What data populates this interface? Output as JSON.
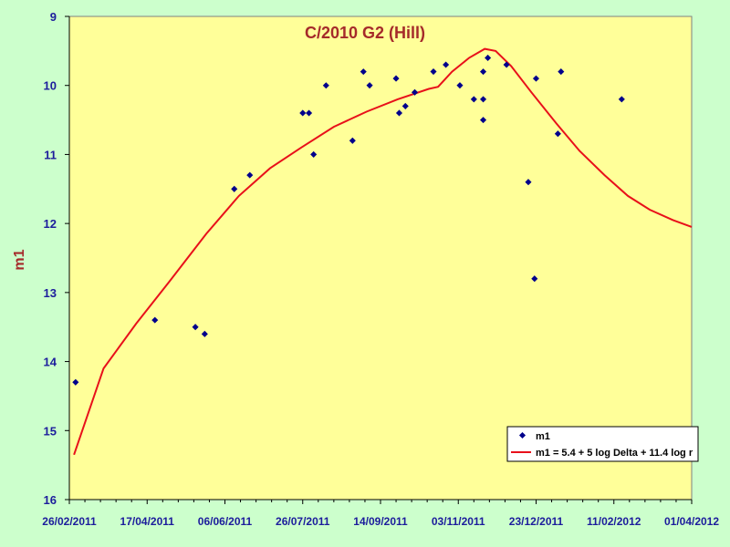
{
  "chart_data": {
    "type": "scatter",
    "title": "C/2010 G2 (Hill)",
    "ylabel": "m1",
    "xlabel": "",
    "y_inverted": true,
    "ylim": [
      9,
      16
    ],
    "yticks": [
      "9",
      "10",
      "11",
      "12",
      "13",
      "14",
      "15",
      "16"
    ],
    "xlim": [
      "2011-02-26",
      "2012-04-01"
    ],
    "xticks": [
      "26/02/2011",
      "17/04/2011",
      "06/06/2011",
      "26/07/2011",
      "14/09/2011",
      "03/11/2011",
      "23/12/2011",
      "11/02/2012",
      "01/04/2012"
    ],
    "grid": false,
    "legend_position": "bottom-right",
    "series": [
      {
        "name": "m1",
        "kind": "scatter",
        "color": "#00008b",
        "points": [
          [
            "2011-03-02",
            14.3
          ],
          [
            "2011-04-22",
            13.4
          ],
          [
            "2011-05-18",
            13.5
          ],
          [
            "2011-05-24",
            13.6
          ],
          [
            "2011-06-12",
            11.5
          ],
          [
            "2011-06-22",
            11.3
          ],
          [
            "2011-07-26",
            10.4
          ],
          [
            "2011-07-30",
            10.4
          ],
          [
            "2011-08-02",
            11.0
          ],
          [
            "2011-08-10",
            10.0
          ],
          [
            "2011-08-27",
            10.8
          ],
          [
            "2011-09-03",
            9.8
          ],
          [
            "2011-09-07",
            10.0
          ],
          [
            "2011-09-24",
            9.9
          ],
          [
            "2011-09-26",
            10.4
          ],
          [
            "2011-09-30",
            10.3
          ],
          [
            "2011-10-06",
            10.1
          ],
          [
            "2011-10-18",
            9.8
          ],
          [
            "2011-10-26",
            9.7
          ],
          [
            "2011-11-04",
            10.0
          ],
          [
            "2011-11-13",
            10.2
          ],
          [
            "2011-11-19",
            9.8
          ],
          [
            "2011-11-19",
            10.2
          ],
          [
            "2011-11-19",
            10.5
          ],
          [
            "2011-11-22",
            9.6
          ],
          [
            "2011-12-04",
            9.7
          ],
          [
            "2011-12-18",
            11.4
          ],
          [
            "2011-12-22",
            12.8
          ],
          [
            "2011-12-23",
            9.9
          ],
          [
            "2012-01-06",
            10.7
          ],
          [
            "2012-01-08",
            9.8
          ],
          [
            "2012-02-16",
            10.2
          ]
        ]
      },
      {
        "name": "m1 = 5.4 + 5 log Delta + 11.4 log r",
        "kind": "line",
        "color": "#e8101a",
        "points": [
          [
            "2011-03-01",
            15.35
          ],
          [
            "2011-03-20",
            14.1
          ],
          [
            "2011-04-10",
            13.45
          ],
          [
            "2011-05-01",
            12.85
          ],
          [
            "2011-05-25",
            12.15
          ],
          [
            "2011-06-15",
            11.6
          ],
          [
            "2011-07-05",
            11.2
          ],
          [
            "2011-07-25",
            10.9
          ],
          [
            "2011-08-15",
            10.6
          ],
          [
            "2011-09-05",
            10.38
          ],
          [
            "2011-09-25",
            10.2
          ],
          [
            "2011-10-15",
            10.05
          ],
          [
            "2011-10-21",
            10.02
          ],
          [
            "2011-10-30",
            9.8
          ],
          [
            "2011-11-10",
            9.6
          ],
          [
            "2011-11-20",
            9.47
          ],
          [
            "2011-11-27",
            9.5
          ],
          [
            "2011-12-07",
            9.72
          ],
          [
            "2011-12-20",
            10.1
          ],
          [
            "2012-01-05",
            10.55
          ],
          [
            "2012-01-20",
            10.95
          ],
          [
            "2012-02-05",
            11.3
          ],
          [
            "2012-02-20",
            11.6
          ],
          [
            "2012-03-05",
            11.8
          ],
          [
            "2012-03-20",
            11.95
          ],
          [
            "2012-04-01",
            12.05
          ]
        ]
      }
    ]
  }
}
